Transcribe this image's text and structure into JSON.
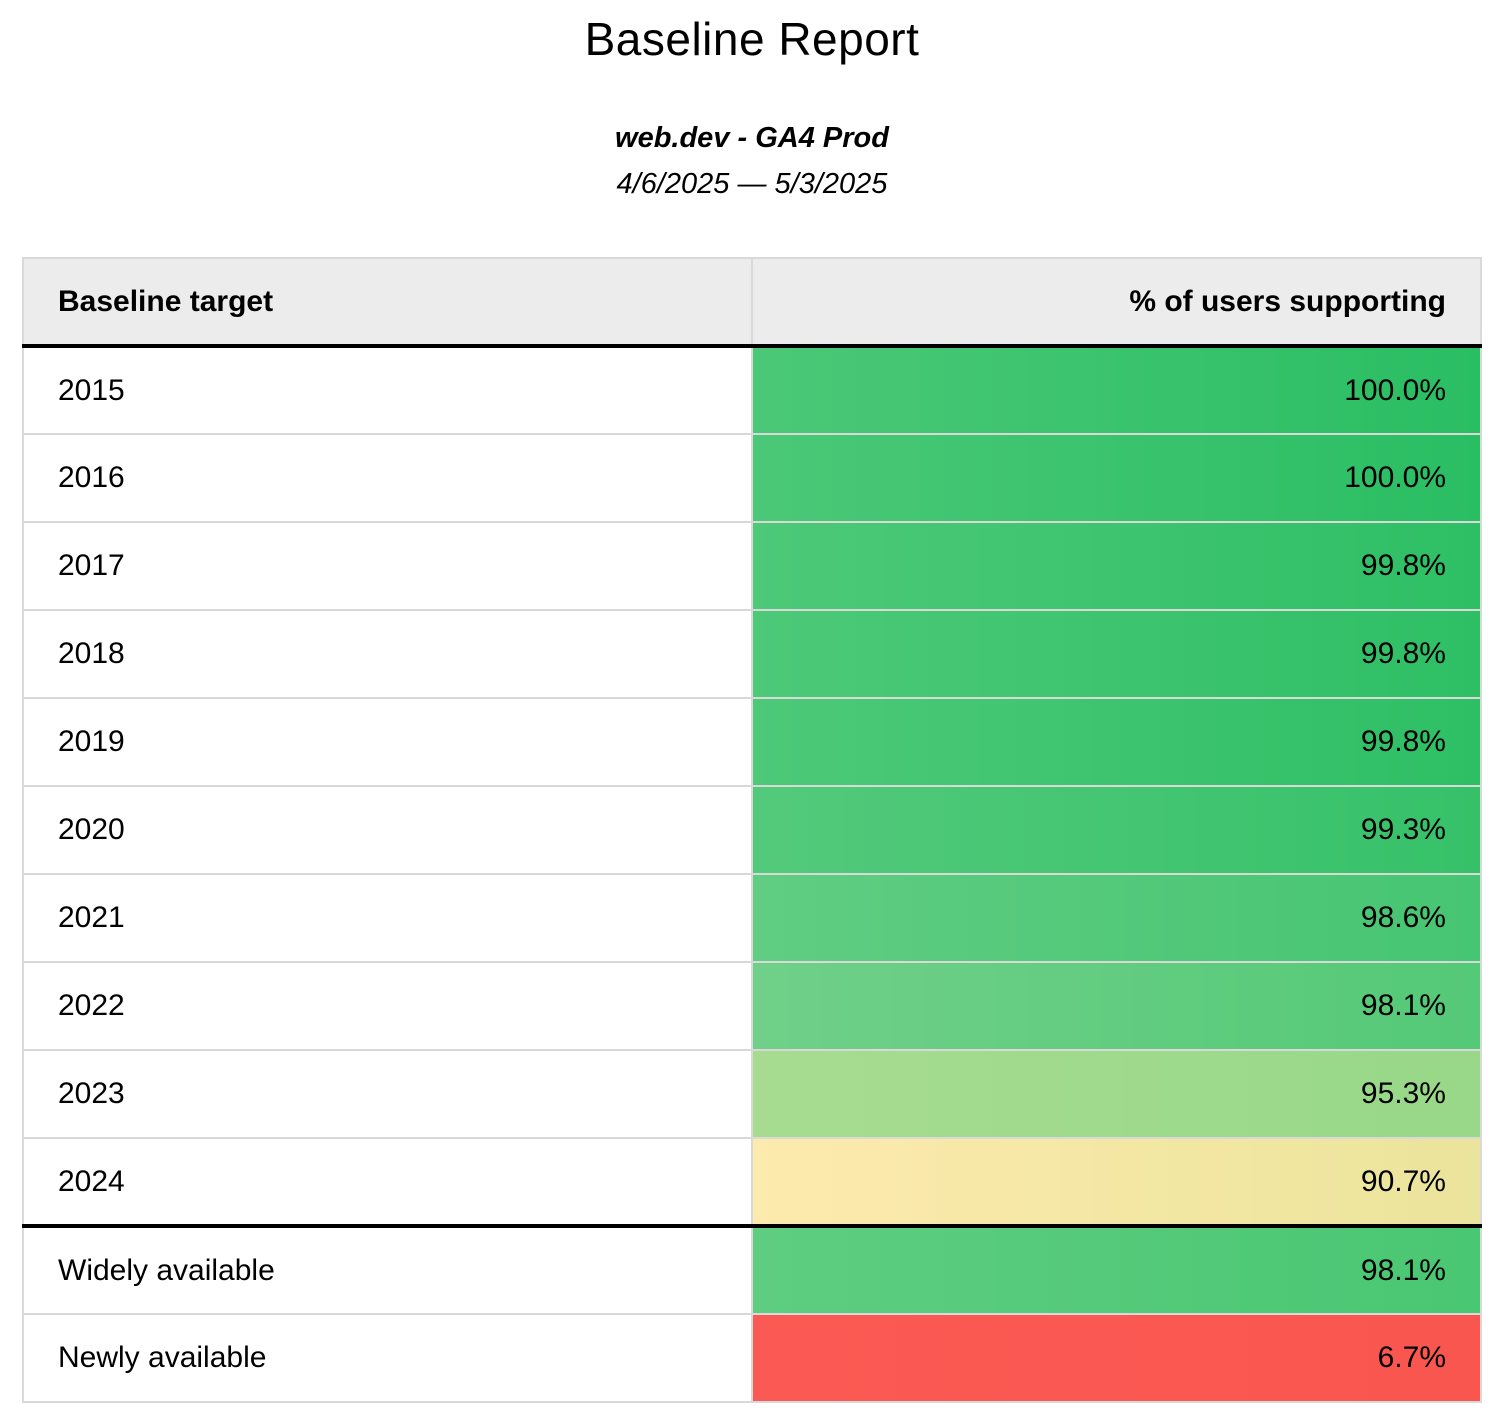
{
  "report": {
    "title": "Baseline Report",
    "subtitle": "web.dev - GA4 Prod",
    "date_range": "4/6/2025 — 5/3/2025"
  },
  "table": {
    "columns": [
      "Baseline target",
      "% of users supporting"
    ],
    "rows": [
      {
        "target": "2015",
        "value": "100.0%",
        "color_left": "#4bc877",
        "color_right": "#2abe63",
        "separator_before": false
      },
      {
        "target": "2016",
        "value": "100.0%",
        "color_left": "#4bc877",
        "color_right": "#2abe63",
        "separator_before": false
      },
      {
        "target": "2017",
        "value": "99.8%",
        "color_left": "#4dc978",
        "color_right": "#2ebf65",
        "separator_before": false
      },
      {
        "target": "2018",
        "value": "99.8%",
        "color_left": "#4dc978",
        "color_right": "#2ebf65",
        "separator_before": false
      },
      {
        "target": "2019",
        "value": "99.8%",
        "color_left": "#4dc978",
        "color_right": "#2ebf65",
        "separator_before": false
      },
      {
        "target": "2020",
        "value": "99.3%",
        "color_left": "#53ca7b",
        "color_right": "#36c169",
        "separator_before": false
      },
      {
        "target": "2021",
        "value": "98.6%",
        "color_left": "#60cd82",
        "color_right": "#46c572",
        "separator_before": false
      },
      {
        "target": "2022",
        "value": "98.1%",
        "color_left": "#70d089",
        "color_right": "#54c977",
        "separator_before": false
      },
      {
        "target": "2023",
        "value": "95.3%",
        "color_left": "#a7dc90",
        "color_right": "#98d888",
        "separator_before": false
      },
      {
        "target": "2024",
        "value": "90.7%",
        "color_left": "#fdeaad",
        "color_right": "#ebe49c",
        "separator_before": false
      },
      {
        "target": "Widely available",
        "value": "98.1%",
        "color_left": "#5ecd80",
        "color_right": "#4ac773",
        "separator_before": true
      },
      {
        "target": "Newly available",
        "value": "6.7%",
        "color_left": "#fb5a54",
        "color_right": "#f9564f",
        "separator_before": false
      }
    ]
  },
  "colors": {
    "header_bg": "#ececec",
    "row_border": "#d9d9d9",
    "section_divider": "#000000"
  },
  "chart_data": {
    "type": "table",
    "title": "Baseline Report",
    "subtitle": "web.dev - GA4 Prod",
    "date_range": "4/6/2025 — 5/3/2025",
    "columns": [
      "Baseline target",
      "% of users supporting"
    ],
    "categories": [
      "2015",
      "2016",
      "2017",
      "2018",
      "2019",
      "2020",
      "2021",
      "2022",
      "2023",
      "2024",
      "Widely available",
      "Newly available"
    ],
    "values": [
      100.0,
      100.0,
      99.8,
      99.8,
      99.8,
      99.3,
      98.6,
      98.1,
      95.3,
      90.7,
      98.1,
      6.7
    ],
    "value_format": "percent",
    "color_scale": "red-yellow-green conditional formatting on value cells"
  }
}
